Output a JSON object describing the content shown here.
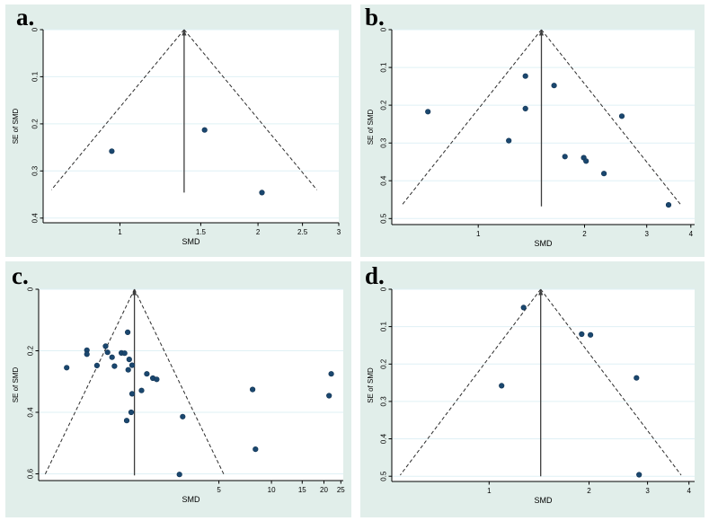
{
  "figure": {
    "background": "#ffffff",
    "panel_background": "#e1eeea",
    "plot_background": "#ffffff",
    "gridline_color": "#dff0f5",
    "axis_color": "#000000",
    "dashed_line_color": "#2b2b2b",
    "center_line_color": "#3d3d3d",
    "dot_color": "#1a476f",
    "dot_edge_color": "#123352"
  },
  "chart_data": [
    {
      "id": "a",
      "label": "a.",
      "type": "scatter",
      "subtype": "funnel-plot",
      "xlabel": "SMD",
      "ylabel": "SE of SMD",
      "x_scale": "log",
      "x_domain": [
        0.68,
        3.0
      ],
      "y_domain": [
        0,
        0.41
      ],
      "x_ticks": [
        {
          "v": 1,
          "t": "1"
        },
        {
          "v": 1.5,
          "t": "1.5"
        },
        {
          "v": 2,
          "t": "2"
        },
        {
          "v": 2.5,
          "t": "2.5"
        },
        {
          "v": 3,
          "t": "3"
        }
      ],
      "y_ticks": [
        {
          "v": 0,
          "t": "0"
        },
        {
          "v": 0.1,
          "t": "0.1"
        },
        {
          "v": 0.2,
          "t": "0.2"
        },
        {
          "v": 0.3,
          "t": "0.3"
        },
        {
          "v": 0.4,
          "t": "0.4"
        }
      ],
      "center": 1.38,
      "se_max": 0.34,
      "line_bottom": 0.346,
      "points": [
        [
          0.96,
          0.258
        ],
        [
          1.53,
          0.213
        ],
        [
          2.04,
          0.346
        ]
      ]
    },
    {
      "id": "b",
      "label": "b.",
      "type": "scatter",
      "subtype": "funnel-plot",
      "xlabel": "SMD",
      "ylabel": "SE of SMD",
      "x_scale": "log",
      "x_domain": [
        0.569,
        4.1
      ],
      "y_domain": [
        0,
        0.516
      ],
      "x_ticks": [
        {
          "v": 1,
          "t": "1"
        },
        {
          "v": 2,
          "t": "2"
        },
        {
          "v": 3,
          "t": "3"
        },
        {
          "v": 4,
          "t": "4"
        }
      ],
      "y_ticks": [
        {
          "v": 0,
          "t": "0"
        },
        {
          "v": 0.1,
          "t": "0.1"
        },
        {
          "v": 0.2,
          "t": "0.2"
        },
        {
          "v": 0.3,
          "t": "0.3"
        },
        {
          "v": 0.4,
          "t": "0.4"
        },
        {
          "v": 0.5,
          "t": "0.5"
        }
      ],
      "center": 1.51,
      "se_max": 0.464,
      "line_bottom": 0.468,
      "points": [
        [
          0.72,
          0.217
        ],
        [
          1.36,
          0.123
        ],
        [
          1.64,
          0.148
        ],
        [
          1.36,
          0.209
        ],
        [
          1.22,
          0.294
        ],
        [
          1.76,
          0.336
        ],
        [
          1.99,
          0.339
        ],
        [
          2.02,
          0.348
        ],
        [
          2.27,
          0.381
        ],
        [
          2.55,
          0.229
        ],
        [
          3.46,
          0.464
        ]
      ]
    },
    {
      "id": "c",
      "label": "c.",
      "type": "scatter",
      "subtype": "funnel-plot",
      "xlabel": "SMD",
      "ylabel": "SE of SMD",
      "x_scale": "log",
      "x_domain": [
        0.463,
        25.8
      ],
      "y_domain": [
        0,
        0.622
      ],
      "x_ticks": [
        {
          "v": 5,
          "t": "5"
        },
        {
          "v": 10,
          "t": "10"
        },
        {
          "v": 15,
          "t": "15"
        },
        {
          "v": 20,
          "t": "20"
        },
        {
          "v": 25,
          "t": "25"
        }
      ],
      "y_ticks": [
        {
          "v": 0,
          "t": "0"
        },
        {
          "v": 0.2,
          "t": "0.2"
        },
        {
          "v": 0.4,
          "t": "0.4"
        },
        {
          "v": 0.6,
          "t": "0.6"
        }
      ],
      "center": 1.64,
      "se_max": 0.603,
      "line_bottom": 0.605,
      "points": [
        [
          0.67,
          0.255
        ],
        [
          0.875,
          0.198
        ],
        [
          0.875,
          0.211
        ],
        [
          1.0,
          0.248
        ],
        [
          1.12,
          0.185
        ],
        [
          1.15,
          0.205
        ],
        [
          1.22,
          0.221
        ],
        [
          1.26,
          0.25
        ],
        [
          1.38,
          0.207
        ],
        [
          1.44,
          0.208
        ],
        [
          1.5,
          0.14
        ],
        [
          1.53,
          0.228
        ],
        [
          1.51,
          0.262
        ],
        [
          1.59,
          0.247
        ],
        [
          1.59,
          0.34
        ],
        [
          1.57,
          0.4
        ],
        [
          1.48,
          0.427
        ],
        [
          1.8,
          0.329
        ],
        [
          1.93,
          0.275
        ],
        [
          2.09,
          0.289
        ],
        [
          2.2,
          0.293
        ],
        [
          2.97,
          0.602
        ],
        [
          3.1,
          0.414
        ],
        [
          7.8,
          0.326
        ],
        [
          8.1,
          0.52
        ],
        [
          21.4,
          0.346
        ],
        [
          22.0,
          0.275
        ]
      ]
    },
    {
      "id": "d",
      "label": "d.",
      "type": "scatter",
      "subtype": "funnel-plot",
      "xlabel": "SMD",
      "ylabel": "SE of SMD",
      "x_scale": "log",
      "x_domain": [
        0.509,
        4.16
      ],
      "y_domain": [
        0,
        0.514
      ],
      "x_ticks": [
        {
          "v": 1,
          "t": "1"
        },
        {
          "v": 2,
          "t": "2"
        },
        {
          "v": 3,
          "t": "3"
        },
        {
          "v": 4,
          "t": "4"
        }
      ],
      "y_ticks": [
        {
          "v": 0,
          "t": "0"
        },
        {
          "v": 0.1,
          "t": "0.1"
        },
        {
          "v": 0.2,
          "t": "0.2"
        },
        {
          "v": 0.3,
          "t": "0.3"
        },
        {
          "v": 0.4,
          "t": "0.4"
        },
        {
          "v": 0.5,
          "t": "0.5"
        }
      ],
      "center": 1.43,
      "se_max": 0.497,
      "line_bottom": 0.5,
      "points": [
        [
          1.27,
          0.049
        ],
        [
          1.9,
          0.12
        ],
        [
          2.02,
          0.122
        ],
        [
          1.09,
          0.258
        ],
        [
          2.78,
          0.237
        ],
        [
          2.83,
          0.496
        ]
      ]
    }
  ]
}
